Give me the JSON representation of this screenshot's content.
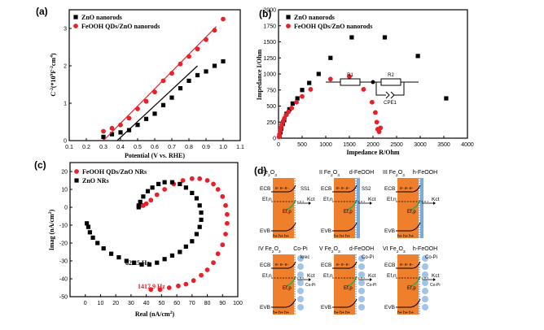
{
  "panels": [
    {
      "label": "(a)",
      "chart_data": {
        "type": "scatter",
        "title": "",
        "xlabel": "Potential (V vs. RHE)",
        "ylabel": "C-2(*109F-2cm4)",
        "xlim": [
          0.1,
          1.1
        ],
        "ylim": [
          0,
          3.5
        ],
        "xticks": [
          "0.1",
          "0.2",
          "0.3",
          "0.4",
          "0.5",
          "0.6",
          "0.7",
          "0.8",
          "0.9",
          "1.0",
          "1.1"
        ],
        "yticks": [
          "0",
          "1",
          "2",
          "3"
        ],
        "legend_position": "top-left",
        "series": [
          {
            "name": "ZnO nanorods",
            "color": "#000000",
            "marker": "square",
            "x": [
              0.3,
              0.35,
              0.4,
              0.45,
              0.5,
              0.55,
              0.6,
              0.65,
              0.7,
              0.75,
              0.8,
              0.85,
              0.9,
              0.95,
              1.0
            ],
            "y": [
              0.1,
              0.17,
              0.22,
              0.28,
              0.42,
              0.58,
              0.72,
              0.95,
              1.15,
              1.4,
              1.6,
              1.75,
              1.85,
              2.0,
              2.12
            ],
            "fit": [
              [
                0.38,
                0.0
              ],
              [
                0.85,
                2.0
              ]
            ]
          },
          {
            "name": "FeOOH QDs/ZnO nanorods",
            "color": "#e8202a",
            "marker": "circle",
            "x": [
              0.3,
              0.35,
              0.4,
              0.45,
              0.5,
              0.55,
              0.6,
              0.65,
              0.7,
              0.75,
              0.8,
              0.85,
              0.9,
              0.95,
              1.0
            ],
            "y": [
              0.25,
              0.33,
              0.42,
              0.6,
              0.85,
              1.05,
              1.3,
              1.6,
              1.8,
              2.05,
              2.25,
              2.45,
              2.7,
              2.95,
              3.25
            ],
            "fit": [
              [
                0.3,
                0.0
              ],
              [
                0.96,
                3.05
              ]
            ]
          }
        ]
      }
    },
    {
      "label": "(b)",
      "chart_data": {
        "type": "scatter",
        "title": "",
        "xlabel": "Impedance R/Ohm",
        "ylabel": "Impedance I/Ohm",
        "xlim": [
          0,
          4000
        ],
        "ylim": [
          0,
          2000
        ],
        "xticks": [
          "0",
          "500",
          "1000",
          "1500",
          "2000",
          "2500",
          "3000",
          "3500",
          "4000"
        ],
        "yticks": [
          "0",
          "250",
          "500",
          "750",
          "1000",
          "1250",
          "1500",
          "1750",
          "2000"
        ],
        "legend_position": "top-left",
        "circuit_labels": {
          "r1": "R1",
          "r2": "R2",
          "cpe": "CPE1"
        },
        "series": [
          {
            "name": "ZnO nanorods",
            "color": "#000000",
            "marker": "square",
            "x": [
              20,
              40,
              60,
              90,
              120,
              170,
              230,
              300,
              400,
              500,
              650,
              850,
              1100,
              1550,
              2250,
              2950,
              3550
            ],
            "y": [
              40,
              90,
              150,
              220,
              280,
              380,
              450,
              540,
              620,
              750,
              860,
              1000,
              1250,
              1570,
              1570,
              1280,
              620
            ]
          },
          {
            "name": "FeOOH QDs/ZnO nanorods",
            "color": "#e8202a",
            "marker": "circle",
            "x": [
              10,
              20,
              35,
              50,
              70,
              95,
              125,
              160,
              210,
              280,
              380,
              500,
              680,
              1100,
              1500,
              1800,
              1980,
              2050,
              2080,
              2100,
              2130,
              2160
            ],
            "y": [
              20,
              60,
              110,
              160,
              210,
              260,
              310,
              360,
              410,
              470,
              560,
              650,
              760,
              920,
              960,
              760,
              560,
              400,
              250,
              140,
              100,
              160
            ]
          }
        ]
      }
    },
    {
      "label": "(c)",
      "chart_data": {
        "type": "scatter",
        "title": "",
        "xlabel": "Real (nA/cm2)",
        "ylabel": "Imag (nA/cm2)",
        "xlim": [
          -10,
          100
        ],
        "ylim": [
          -50,
          25
        ],
        "xticks": [
          "0",
          "10",
          "20",
          "30",
          "40",
          "50",
          "60",
          "70",
          "80",
          "90",
          "100"
        ],
        "yticks": [
          "-50",
          "-40",
          "-30",
          "-20",
          "-10",
          "0",
          "10",
          "20"
        ],
        "legend_position": "top-left",
        "annotations": [
          {
            "text": "822.5 Hz",
            "color": "#000000"
          },
          {
            "text": "1417.9 Hz",
            "color": "#e8202a"
          }
        ],
        "series": [
          {
            "name": "FeOOH QDs/ZnO NRs",
            "color": "#e8202a",
            "marker": "circle",
            "x": [
              37,
              38,
              40,
              43,
              47,
              52,
              58,
              64,
              70,
              75,
              80,
              84,
              87,
              90,
              92,
              93,
              93,
              92,
              90,
              87,
              84,
              80,
              76,
              71,
              66,
              61,
              55,
              49,
              43
            ],
            "y": [
              1,
              1,
              2,
              4,
              7,
              10,
              13,
              15,
              16,
              16,
              15,
              13,
              10,
              6,
              1,
              -4,
              -9,
              -15,
              -21,
              -26,
              -31,
              -35,
              -38,
              -41,
              -43,
              -44,
              -45,
              -46,
              -46
            ]
          },
          {
            "name": "ZnO NRs",
            "color": "#000000",
            "marker": "square",
            "x": [
              35,
              35,
              36,
              38,
              41,
              44,
              48,
              52,
              57,
              62,
              66,
              70,
              73,
              75,
              76,
              76,
              75,
              73,
              70,
              66,
              62,
              57,
              52,
              47,
              42,
              37,
              32,
              27,
              22,
              17,
              12,
              8,
              5,
              3,
              2,
              1
            ],
            "y": [
              0,
              1,
              3,
              6,
              9,
              11,
              13,
              14,
              14,
              13,
              11,
              8,
              5,
              1,
              -3,
              -7,
              -11,
              -15,
              -19,
              -22,
              -25,
              -27,
              -29,
              -31,
              -32,
              -32,
              -31,
              -30,
              -28,
              -26,
              -23,
              -20,
              -17,
              -14,
              -11,
              -9
            ]
          }
        ]
      }
    },
    {
      "label": "(d)",
      "panels": [
        {
          "numeral": "I",
          "material": "Fe2O3",
          "coating": "",
          "site_label": "SS1",
          "rate_label": "Kct",
          "has_copi": false
        },
        {
          "numeral": "II",
          "material": "Fe2O3",
          "coating": "d-FeOOH",
          "site_label": "SS2",
          "rate_label": "Kct",
          "has_copi": false
        },
        {
          "numeral": "III",
          "material": "Fe2O3",
          "coating": "h-FeOOH",
          "site_label": "",
          "rate_label": "Kct",
          "has_copi": false
        },
        {
          "numeral": "IV",
          "material": "Fe2O3",
          "coating": "Co-Pi",
          "site_label": "krec",
          "rate_label": "Kct",
          "has_copi": true
        },
        {
          "numeral": "V",
          "material": "Fe2O3",
          "coating": "d-FeOOH",
          "site_label": "Co-Pi",
          "rate_label": "Kct",
          "has_copi": true
        },
        {
          "numeral": "VI",
          "material": "Fe2O3",
          "coating": "h-FeOOH",
          "site_label": "Co-Pi",
          "rate_label": "Kct",
          "has_copi": true
        }
      ],
      "labels": {
        "ecb": "ECB",
        "efn": "Ef,n",
        "efp": "Ef,p",
        "evb": "EVB",
        "electrons": "e- e- e-",
        "holes": "h+ h+ h+",
        "copi": "Co-Pi"
      },
      "colors": {
        "semiconductor": "#f07f2c",
        "interface": "#2fa84f",
        "layer": "#7aa9dc"
      }
    }
  ]
}
